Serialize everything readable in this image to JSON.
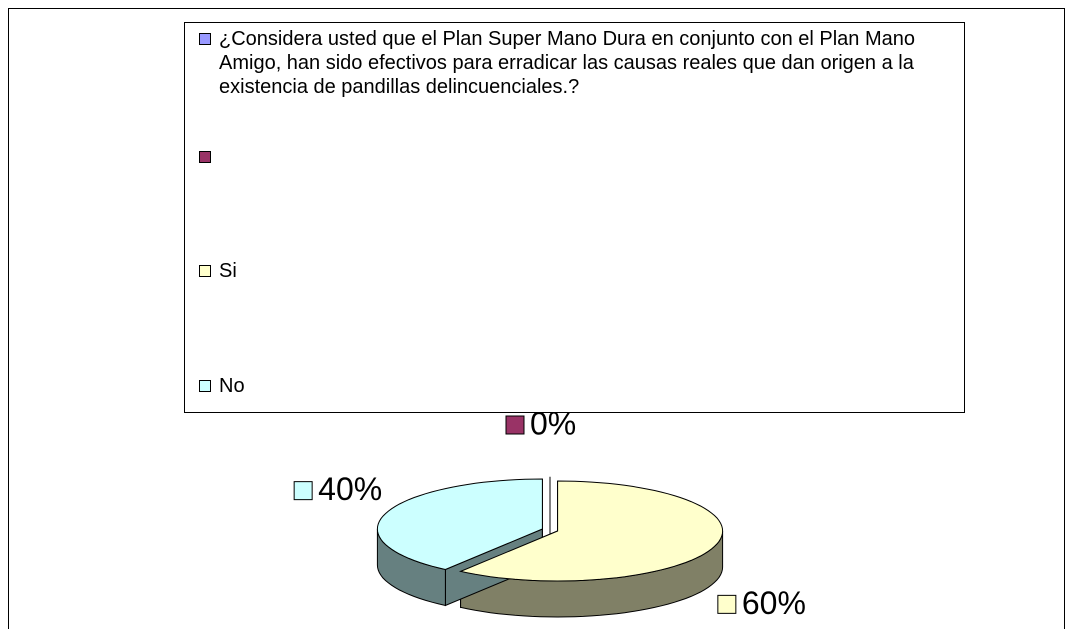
{
  "chart_data": {
    "type": "pie3d",
    "categories": [
      "¿Considera usted que el Plan Super Mano Dura en conjunto con el Plan Mano Amigo, han sido efectivos para erradicar las causas reales que dan origen a la existencia de pandillas delincuenciales.?",
      null,
      "Si",
      "No"
    ],
    "values": [
      null,
      0,
      60,
      40
    ],
    "value_labels": [
      null,
      "0%",
      "60%",
      "40%"
    ],
    "colors": [
      "#9999ff",
      "#993366",
      "#ffffcc",
      "#ccffff"
    ],
    "side_colors": [
      "#4c4c80",
      "#4c1a33",
      "#808066",
      "#668080"
    ]
  }
}
